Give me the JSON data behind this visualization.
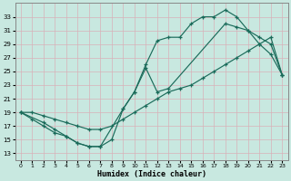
{
  "xlabel": "Humidex (Indice chaleur)",
  "bg_color": "#c8e8e0",
  "grid_color": "#d8eee8",
  "line_color": "#1a6b5a",
  "xlim": [
    -0.5,
    23.5
  ],
  "ylim": [
    12,
    35
  ],
  "xticks": [
    0,
    1,
    2,
    3,
    4,
    5,
    6,
    7,
    8,
    9,
    10,
    11,
    12,
    13,
    14,
    15,
    16,
    17,
    18,
    19,
    20,
    21,
    22,
    23
  ],
  "yticks": [
    13,
    15,
    17,
    19,
    21,
    23,
    25,
    27,
    29,
    31,
    33
  ],
  "line1_x": [
    0,
    1,
    2,
    3,
    4,
    5,
    6,
    7,
    9,
    10,
    11,
    12,
    13,
    14,
    15,
    16,
    17,
    18,
    19,
    20,
    21,
    22,
    23
  ],
  "line1_y": [
    19,
    18,
    17,
    16,
    15.5,
    14.5,
    14,
    14,
    19.5,
    22,
    26,
    29.5,
    30,
    30,
    32,
    33,
    33,
    34,
    33,
    31,
    29,
    27.5,
    24.5
  ],
  "line2_x": [
    0,
    2,
    3,
    4,
    5,
    6,
    7,
    8,
    9,
    10,
    11,
    12,
    13,
    18,
    19,
    20,
    21,
    22,
    23
  ],
  "line2_y": [
    19,
    17.5,
    16.5,
    15.5,
    14.5,
    14,
    14,
    15,
    19.5,
    22,
    25.5,
    22,
    22.5,
    32,
    31.5,
    31,
    30,
    29,
    24.5
  ],
  "line3_x": [
    0,
    1,
    2,
    3,
    4,
    5,
    6,
    7,
    8,
    9,
    10,
    11,
    12,
    13,
    14,
    15,
    16,
    17,
    18,
    19,
    20,
    21,
    22,
    23
  ],
  "line3_y": [
    19,
    19,
    18.5,
    18,
    17.5,
    17,
    16.5,
    16.5,
    17,
    18,
    19,
    20,
    21,
    22,
    22.5,
    23,
    24,
    25,
    26,
    27,
    28,
    29,
    30,
    24.5
  ]
}
